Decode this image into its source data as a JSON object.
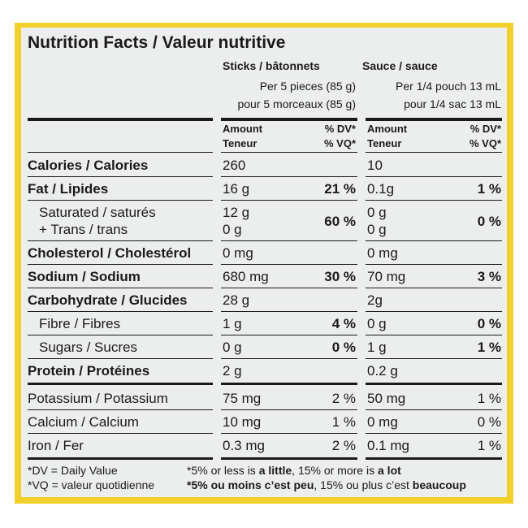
{
  "title": "Nutrition Facts / Valeur nutritive",
  "columns": [
    {
      "name": "Sticks / bâtonnets",
      "serving": [
        "Per 5 pieces (85 g)",
        "pour 5 morceaux (85 g)"
      ]
    },
    {
      "name": "Sauce / sauce",
      "serving": [
        "Per 1/4 pouch 13 mL",
        "pour 1/4 sac 13 mL"
      ]
    }
  ],
  "header": {
    "amount": [
      "Amount",
      "Teneur"
    ],
    "dv": [
      "% DV*",
      "% VQ*"
    ]
  },
  "rows": [
    {
      "label": "Calories / Calories",
      "amounts": [
        "260",
        "10"
      ]
    },
    {
      "label": "Fat / Lipides",
      "amounts": [
        "16 g",
        "0.1g"
      ],
      "dv": [
        "21 %",
        "1 %"
      ],
      "sub": [
        {
          "label": [
            "Saturated / saturés",
            "+ Trans / trans"
          ],
          "amounts": [
            [
              "12 g",
              "0 g"
            ],
            [
              "0 g",
              "0 g"
            ]
          ],
          "dv": [
            "60 %",
            "0 %"
          ]
        }
      ]
    },
    {
      "label": "Cholesterol / Cholestérol",
      "amounts": [
        "0 mg",
        "0 mg"
      ]
    },
    {
      "label": "Sodium / Sodium",
      "amounts": [
        "680 mg",
        "70 mg"
      ],
      "dv": [
        "30 %",
        "3 %"
      ]
    },
    {
      "label": "Carbohydrate / Glucides",
      "amounts": [
        "28 g",
        "2g"
      ],
      "sub": [
        {
          "label": "Fibre / Fibres",
          "amounts": [
            "1 g",
            "0 g"
          ],
          "dv": [
            "4 %",
            "0 %"
          ]
        },
        {
          "label": "Sugars / Sucres",
          "amounts": [
            "0 g",
            "1 g"
          ],
          "dv": [
            "0 %",
            "1 %"
          ]
        }
      ]
    },
    {
      "label": "Protein / Protéines",
      "amounts": [
        "2 g",
        "0.2 g"
      ]
    }
  ],
  "minerals": [
    {
      "label": "Potassium / Potassium",
      "amounts": [
        "75 mg",
        "50 mg"
      ],
      "dv": [
        "2 %",
        "1 %"
      ]
    },
    {
      "label": "Calcium / Calcium",
      "amounts": [
        "10 mg",
        "0 mg"
      ],
      "dv": [
        "1 %",
        "0 %"
      ]
    },
    {
      "label": "Iron / Fer",
      "amounts": [
        "0.3 mg",
        "0.1 mg"
      ],
      "dv": [
        "2 %",
        "1 %"
      ]
    }
  ],
  "footnote": {
    "left": [
      "*DV = Daily Value",
      "*VQ = valeur quotidienne"
    ],
    "english": [
      "*5% or less is ",
      "a little",
      ", 15% or more is ",
      "a lot"
    ],
    "french": [
      "*5% ou moins c’est peu",
      ", 15% ou plus c’est ",
      "beaucoup"
    ]
  }
}
